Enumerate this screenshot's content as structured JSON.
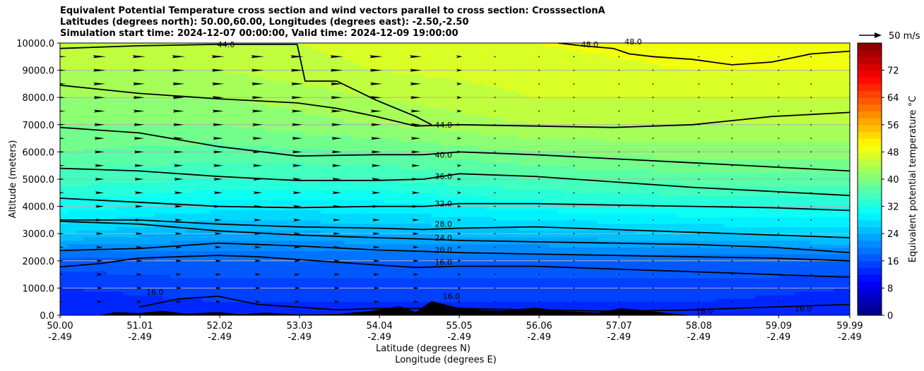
{
  "title_lines": [
    "Equivalent Potential Temperature cross section and wind vectors parallel to cross section: CrosssectionA",
    "Latitudes (degrees north): 50.00,60.00, Longitudes (degrees east): -2.50,-2.50",
    "Simulation start time: 2024-12-07 00:00:00, Valid time: 2024-12-09 19:00:00"
  ],
  "chart_data": {
    "type": "heatmap",
    "xlabel": "Latitude (degrees N)",
    "xlabel2": "Longitude (degrees E)",
    "ylabel": "Altitude (meters)",
    "xlim": [
      50.0,
      59.99
    ],
    "ylim": [
      0,
      10000
    ],
    "grid": "horizontal",
    "x_ticks": [
      {
        "lat": "50.00",
        "lon": "-2.49",
        "v": 50.0
      },
      {
        "lat": "51.01",
        "lon": "-2.49",
        "v": 51.01
      },
      {
        "lat": "52.02",
        "lon": "-2.49",
        "v": 52.02
      },
      {
        "lat": "53.03",
        "lon": "-2.49",
        "v": 53.03
      },
      {
        "lat": "54.04",
        "lon": "-2.49",
        "v": 54.04
      },
      {
        "lat": "55.05",
        "lon": "-2.49",
        "v": 55.05
      },
      {
        "lat": "56.06",
        "lon": "-2.49",
        "v": 56.06
      },
      {
        "lat": "57.07",
        "lon": "-2.49",
        "v": 57.07
      },
      {
        "lat": "58.08",
        "lon": "-2.49",
        "v": 58.08
      },
      {
        "lat": "59.09",
        "lon": "-2.49",
        "v": 59.09
      },
      {
        "lat": "59.99",
        "lon": "-2.49",
        "v": 59.99
      }
    ],
    "y_ticks": [
      "0.0",
      "1000.0",
      "2000.0",
      "3000.0",
      "4000.0",
      "5000.0",
      "6000.0",
      "7000.0",
      "8000.0",
      "9000.0",
      "10000.0"
    ],
    "colorbar": {
      "label": "Equivalent potential temperature °C",
      "range": [
        0,
        80
      ],
      "ticks": [
        "0",
        "8",
        "16",
        "24",
        "32",
        "40",
        "48",
        "56",
        "64",
        "72"
      ],
      "colormap": "jet"
    },
    "wind_key": "50 m/s",
    "theta_e_columns": [
      {
        "lat": 50.0,
        "levels": [
          {
            "z": 0,
            "t": 12
          },
          {
            "z": 1000,
            "t": 14
          },
          {
            "z": 2000,
            "t": 17
          },
          {
            "z": 3000,
            "t": 26
          },
          {
            "z": 4000,
            "t": 31
          },
          {
            "z": 5000,
            "t": 35
          },
          {
            "z": 6000,
            "t": 38
          },
          {
            "z": 7000,
            "t": 40
          },
          {
            "z": 8000,
            "t": 42
          },
          {
            "z": 9000,
            "t": 44
          },
          {
            "z": 10000,
            "t": 45
          }
        ]
      },
      {
        "lat": 52.0,
        "levels": [
          {
            "z": 0,
            "t": 13
          },
          {
            "z": 1000,
            "t": 15
          },
          {
            "z": 2000,
            "t": 18
          },
          {
            "z": 3000,
            "t": 23
          },
          {
            "z": 4000,
            "t": 29
          },
          {
            "z": 5000,
            "t": 34
          },
          {
            "z": 6000,
            "t": 37
          },
          {
            "z": 7000,
            "t": 40
          },
          {
            "z": 8000,
            "t": 42
          },
          {
            "z": 9000,
            "t": 44
          },
          {
            "z": 10000,
            "t": 45
          }
        ]
      },
      {
        "lat": 54.0,
        "levels": [
          {
            "z": 0,
            "t": 13
          },
          {
            "z": 1000,
            "t": 15
          },
          {
            "z": 2000,
            "t": 18
          },
          {
            "z": 3000,
            "t": 24
          },
          {
            "z": 4000,
            "t": 29
          },
          {
            "z": 5000,
            "t": 34
          },
          {
            "z": 6000,
            "t": 38
          },
          {
            "z": 7000,
            "t": 42
          },
          {
            "z": 8000,
            "t": 44
          },
          {
            "z": 9000,
            "t": 46
          },
          {
            "z": 10000,
            "t": 47
          }
        ]
      },
      {
        "lat": 56.0,
        "levels": [
          {
            "z": 0,
            "t": 13
          },
          {
            "z": 1000,
            "t": 15
          },
          {
            "z": 2000,
            "t": 18
          },
          {
            "z": 3000,
            "t": 25
          },
          {
            "z": 4000,
            "t": 31
          },
          {
            "z": 5000,
            "t": 36
          },
          {
            "z": 6000,
            "t": 40
          },
          {
            "z": 7000,
            "t": 44
          },
          {
            "z": 8000,
            "t": 46
          },
          {
            "z": 9000,
            "t": 47
          },
          {
            "z": 10000,
            "t": 48
          }
        ]
      },
      {
        "lat": 58.0,
        "levels": [
          {
            "z": 0,
            "t": 13
          },
          {
            "z": 1000,
            "t": 15
          },
          {
            "z": 2000,
            "t": 18
          },
          {
            "z": 3000,
            "t": 26
          },
          {
            "z": 4000,
            "t": 32
          },
          {
            "z": 5000,
            "t": 37
          },
          {
            "z": 6000,
            "t": 41
          },
          {
            "z": 7000,
            "t": 44
          },
          {
            "z": 8000,
            "t": 46
          },
          {
            "z": 9000,
            "t": 48
          },
          {
            "z": 10000,
            "t": 49
          }
        ]
      },
      {
        "lat": 59.99,
        "levels": [
          {
            "z": 0,
            "t": 12
          },
          {
            "z": 1000,
            "t": 14
          },
          {
            "z": 2000,
            "t": 18
          },
          {
            "z": 3000,
            "t": 27
          },
          {
            "z": 4000,
            "t": 32
          },
          {
            "z": 5000,
            "t": 37
          },
          {
            "z": 6000,
            "t": 41
          },
          {
            "z": 7000,
            "t": 44
          },
          {
            "z": 8000,
            "t": 46
          },
          {
            "z": 9000,
            "t": 48
          },
          {
            "z": 10000,
            "t": 49
          }
        ]
      }
    ],
    "contours": [
      {
        "label": "16.0",
        "points": [
          [
            50.0,
            1780
          ],
          [
            50.5,
            1900
          ],
          [
            51.0,
            2100
          ],
          [
            51.5,
            2150
          ],
          [
            52.0,
            2200
          ],
          [
            52.5,
            2150
          ],
          [
            53.0,
            2050
          ],
          [
            53.5,
            1950
          ],
          [
            54.0,
            1850
          ],
          [
            54.5,
            1760
          ],
          [
            55.05,
            1800
          ],
          [
            56.0,
            1800
          ],
          [
            57.0,
            1700
          ],
          [
            58.0,
            1600
          ],
          [
            59.0,
            1500
          ],
          [
            59.99,
            1400
          ]
        ]
      },
      {
        "label": "20.0",
        "points": [
          [
            50.0,
            2380
          ],
          [
            51.0,
            2450
          ],
          [
            52.0,
            2650
          ],
          [
            53.0,
            2550
          ],
          [
            54.0,
            2400
          ],
          [
            54.6,
            2350
          ],
          [
            55.05,
            2300
          ],
          [
            56.0,
            2250
          ],
          [
            57.0,
            2200
          ],
          [
            58.0,
            2150
          ],
          [
            59.0,
            2100
          ],
          [
            59.99,
            2000
          ]
        ]
      },
      {
        "label": "24.0",
        "points": [
          [
            50.0,
            3450
          ],
          [
            51.0,
            3350
          ],
          [
            52.0,
            3100
          ],
          [
            53.0,
            2950
          ],
          [
            54.0,
            2850
          ],
          [
            54.6,
            2800
          ],
          [
            55.05,
            2750
          ],
          [
            56.0,
            2700
          ],
          [
            57.0,
            2650
          ],
          [
            58.0,
            2600
          ],
          [
            59.0,
            2500
          ],
          [
            59.99,
            2300
          ]
        ]
      },
      {
        "label": "28.0",
        "points": [
          [
            50.0,
            3500
          ],
          [
            51.0,
            3500
          ],
          [
            52.0,
            3350
          ],
          [
            53.0,
            3250
          ],
          [
            54.0,
            3200
          ],
          [
            54.6,
            3150
          ],
          [
            55.05,
            3200
          ],
          [
            56.0,
            3250
          ],
          [
            57.0,
            3150
          ],
          [
            58.0,
            3050
          ],
          [
            59.0,
            2950
          ],
          [
            59.99,
            2850
          ]
        ]
      },
      {
        "label": "32.0",
        "points": [
          [
            50.0,
            4300
          ],
          [
            51.0,
            4150
          ],
          [
            52.0,
            4000
          ],
          [
            53.0,
            3950
          ],
          [
            54.0,
            4000
          ],
          [
            54.6,
            4000
          ],
          [
            55.05,
            4100
          ],
          [
            56.0,
            4100
          ],
          [
            57.0,
            4050
          ],
          [
            58.0,
            4000
          ],
          [
            59.0,
            3950
          ],
          [
            59.99,
            3850
          ]
        ]
      },
      {
        "label": "36.0",
        "points": [
          [
            50.0,
            5400
          ],
          [
            51.0,
            5300
          ],
          [
            52.0,
            5100
          ],
          [
            53.0,
            4950
          ],
          [
            54.0,
            4950
          ],
          [
            54.6,
            5000
          ],
          [
            55.05,
            5200
          ],
          [
            56.0,
            5100
          ],
          [
            57.0,
            4900
          ],
          [
            58.0,
            4700
          ],
          [
            59.0,
            4550
          ],
          [
            59.99,
            4400
          ]
        ]
      },
      {
        "label": "40.0",
        "points": [
          [
            50.0,
            6900
          ],
          [
            51.0,
            6700
          ],
          [
            52.0,
            6200
          ],
          [
            53.0,
            5850
          ],
          [
            54.0,
            5900
          ],
          [
            54.6,
            5900
          ],
          [
            55.05,
            6000
          ],
          [
            56.0,
            5900
          ],
          [
            57.0,
            5750
          ],
          [
            58.0,
            5600
          ],
          [
            59.0,
            5450
          ],
          [
            59.99,
            5300
          ]
        ]
      },
      {
        "label": "44.0",
        "points": [
          [
            50.0,
            8450
          ],
          [
            51.0,
            8150
          ],
          [
            52.0,
            7950
          ],
          [
            53.0,
            7800
          ],
          [
            53.5,
            7600
          ],
          [
            54.0,
            7300
          ],
          [
            54.5,
            6950
          ],
          [
            55.05,
            7000
          ],
          [
            56.0,
            6950
          ],
          [
            57.0,
            6900
          ],
          [
            58.0,
            7000
          ],
          [
            59.0,
            7300
          ],
          [
            59.99,
            7450
          ]
        ]
      },
      {
        "label": "44.0",
        "points": [
          [
            50.0,
            9800
          ],
          [
            51.0,
            9900
          ],
          [
            52.0,
            9950
          ],
          [
            53.0,
            9950
          ],
          [
            53.1,
            8600
          ],
          [
            53.5,
            8600
          ],
          [
            54.0,
            7900
          ],
          [
            54.5,
            7300
          ],
          [
            54.7,
            7000
          ]
        ]
      },
      {
        "label": "48.0",
        "points": [
          [
            56.3,
            10000
          ],
          [
            56.6,
            9900
          ],
          [
            57.0,
            9800
          ],
          [
            57.2,
            9600
          ],
          [
            57.5,
            9500
          ],
          [
            58.0,
            9400
          ],
          [
            58.5,
            9200
          ],
          [
            59.0,
            9300
          ],
          [
            59.5,
            9600
          ],
          [
            59.99,
            9700
          ]
        ]
      },
      {
        "label": "16.0",
        "points": [
          [
            51.0,
            300
          ],
          [
            51.5,
            600
          ],
          [
            52.0,
            700
          ],
          [
            52.5,
            400
          ],
          [
            53.0,
            300
          ],
          [
            53.5,
            200
          ],
          [
            54.0,
            250
          ],
          [
            55.05,
            250
          ],
          [
            56.0,
            200
          ],
          [
            57.0,
            150
          ],
          [
            58.0,
            200
          ],
          [
            59.0,
            300
          ],
          [
            59.99,
            400
          ]
        ]
      }
    ],
    "contour_labels": [
      {
        "text": "44.0",
        "lat": 54.85,
        "alt": 7000
      },
      {
        "text": "40.0",
        "lat": 54.85,
        "alt": 5900
      },
      {
        "text": "36.0",
        "lat": 54.85,
        "alt": 5100
      },
      {
        "text": "32.0",
        "lat": 54.85,
        "alt": 4100
      },
      {
        "text": "28.0",
        "lat": 54.85,
        "alt": 3350
      },
      {
        "text": "24.0",
        "lat": 54.85,
        "alt": 2850
      },
      {
        "text": "20.0",
        "lat": 54.85,
        "alt": 2400
      },
      {
        "text": "16.0",
        "lat": 54.85,
        "alt": 1950
      },
      {
        "text": "16.0",
        "lat": 54.95,
        "alt": 700
      },
      {
        "text": "44.0",
        "lat": 52.1,
        "alt": 9950
      },
      {
        "text": "48.0",
        "lat": 56.7,
        "alt": 9950
      },
      {
        "text": "48.0",
        "lat": 57.25,
        "alt": 10050
      },
      {
        "text": "16.0",
        "lat": 51.2,
        "alt": 850
      },
      {
        "text": "16.0",
        "lat": 58.15,
        "alt": 150
      },
      {
        "text": "16.0",
        "lat": 59.4,
        "alt": 250
      }
    ],
    "wind_vectors": {
      "lats": [
        50.0,
        50.5,
        51.0,
        51.5,
        52.0,
        52.5,
        53.0,
        53.5,
        54.0,
        54.5,
        55.05,
        55.5,
        56.06,
        56.5,
        57.07,
        57.5,
        58.08,
        58.5,
        59.09,
        59.5,
        59.99
      ],
      "alts": [
        9500,
        9000,
        8500,
        8000,
        7500,
        7000,
        6500,
        6000,
        5500,
        5000,
        4500,
        4000,
        3500,
        3000,
        2500,
        2000,
        1500,
        1000,
        500
      ],
      "u_upper": 40,
      "u_lower": 14
    },
    "terrain": [
      [
        50.5,
        0
      ],
      [
        50.7,
        120
      ],
      [
        51.0,
        80
      ],
      [
        51.3,
        160
      ],
      [
        51.6,
        60
      ],
      [
        52.0,
        120
      ],
      [
        52.3,
        40
      ],
      [
        52.6,
        100
      ],
      [
        53.0,
        30
      ],
      [
        53.5,
        50
      ],
      [
        53.9,
        150
      ],
      [
        54.3,
        330
      ],
      [
        54.5,
        120
      ],
      [
        54.7,
        520
      ],
      [
        55.0,
        300
      ],
      [
        55.3,
        200
      ],
      [
        55.6,
        170
      ],
      [
        56.0,
        280
      ],
      [
        56.4,
        150
      ],
      [
        56.8,
        100
      ],
      [
        57.1,
        260
      ],
      [
        57.4,
        180
      ],
      [
        57.7,
        80
      ],
      [
        58.0,
        0
      ]
    ]
  }
}
